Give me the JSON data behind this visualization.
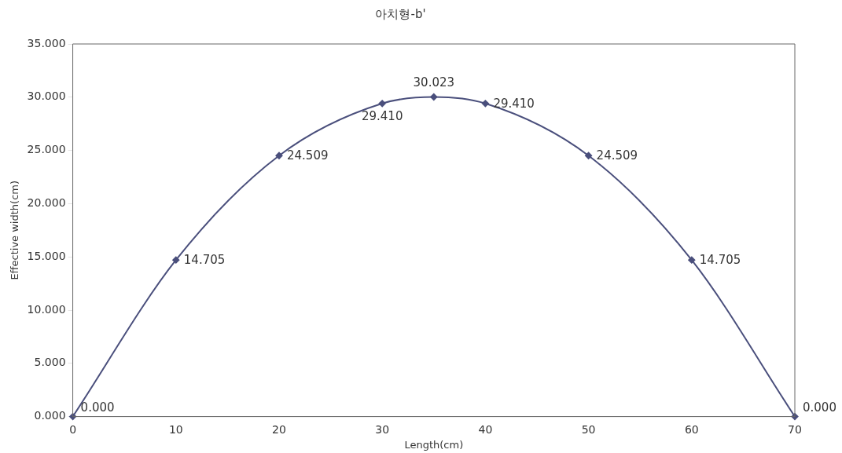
{
  "chart_data": {
    "type": "line",
    "title": "아치형-b'",
    "xlabel": "Length(cm)",
    "ylabel": "Effective width(cm)",
    "x": [
      0,
      10,
      20,
      30,
      35,
      40,
      50,
      60,
      70
    ],
    "series": [
      {
        "color": "#4a4f7c",
        "values": [
          0,
          14.705,
          24.509,
          29.41,
          30.023,
          29.41,
          24.509,
          14.705,
          0
        ],
        "value_labels": [
          "0.000",
          "14.705",
          "24.509",
          "29.410",
          "30.023",
          "29.410",
          "24.509",
          "14.705",
          "0.000"
        ]
      }
    ],
    "xlim": [
      0,
      70
    ],
    "xticks": [
      0,
      10,
      20,
      30,
      40,
      50,
      60,
      70
    ],
    "ylim": [
      0,
      35
    ],
    "yticks": [
      {
        "value": 0,
        "label": "0.000"
      },
      {
        "value": 5,
        "label": "5.000"
      },
      {
        "value": 10,
        "label": "10.000"
      },
      {
        "value": 15,
        "label": "15.000"
      },
      {
        "value": 20,
        "label": "20.000"
      },
      {
        "value": 25,
        "label": "25.000"
      },
      {
        "value": 30,
        "label": "30.000"
      },
      {
        "value": 35,
        "label": "35.000"
      }
    ],
    "grid": false,
    "legend": false,
    "marker": "diamond",
    "line_style": "solid"
  }
}
